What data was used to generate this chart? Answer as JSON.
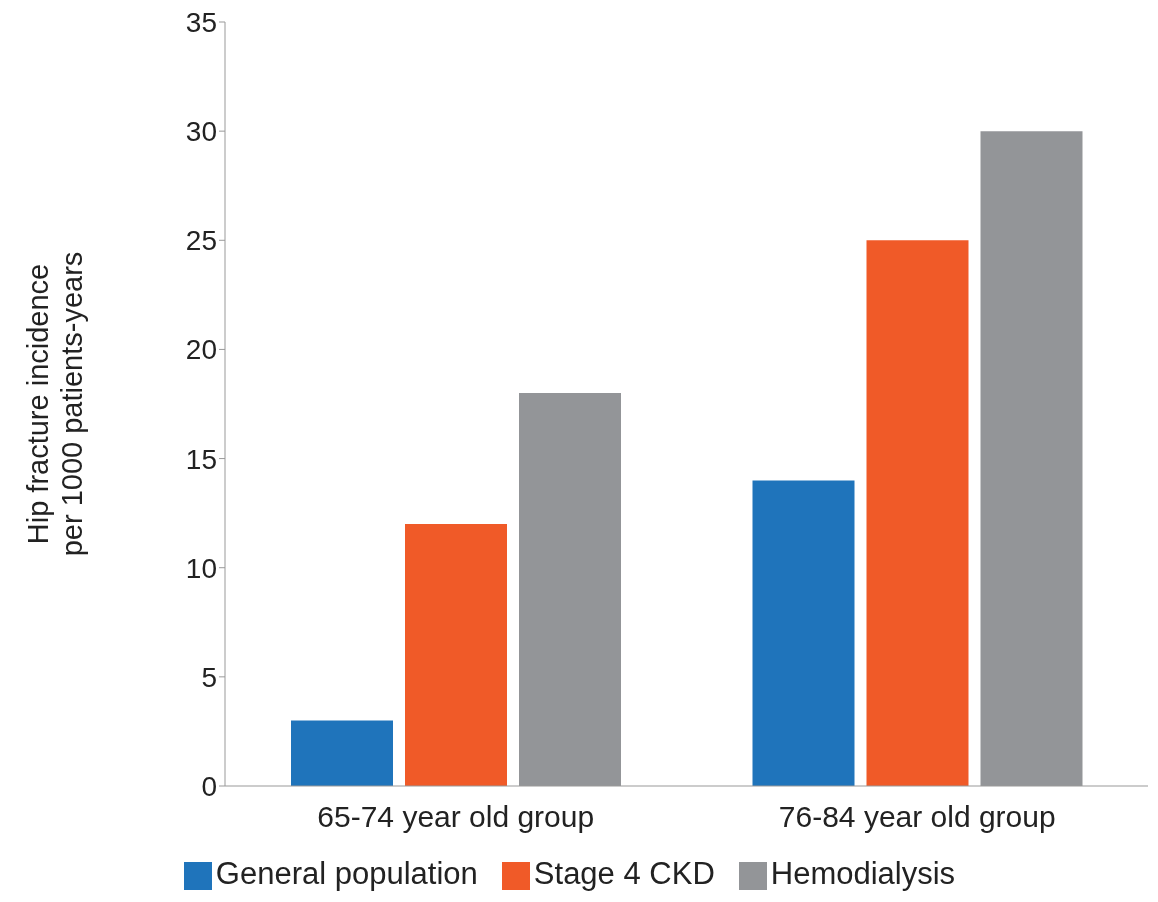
{
  "chart_data": {
    "type": "bar",
    "ylabel": "Hip fracture incidence\nper 1000 patients-years",
    "categories": [
      "65-74 year old group",
      "76-84 year old group"
    ],
    "series": [
      {
        "name": "General population",
        "color": "#1f74bb",
        "values": [
          3,
          14
        ]
      },
      {
        "name": "Stage 4 CKD",
        "color": "#f05a28",
        "values": [
          12,
          25
        ]
      },
      {
        "name": "Hemodialysis",
        "color": "#939598",
        "values": [
          18,
          30
        ]
      }
    ],
    "ylim": [
      0,
      35
    ],
    "yticks": [
      0,
      5,
      10,
      15,
      20,
      25,
      30,
      35
    ],
    "grid": false,
    "legend": "bottom"
  }
}
